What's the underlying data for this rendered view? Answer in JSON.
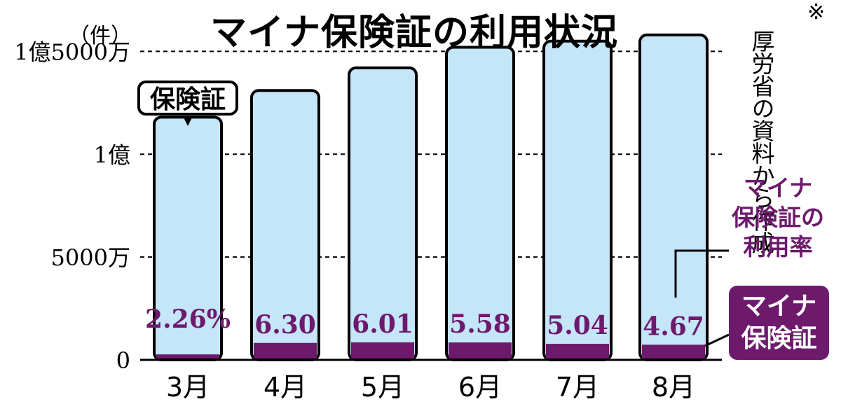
{
  "title": "マイナ保険証の利用状況",
  "unit_label": "（件）",
  "source_note": {
    "mark": "※",
    "text": "厚労省の資料から作成"
  },
  "legend": {
    "rate_label": [
      "マイナ",
      "保険証の",
      "利用率"
    ],
    "mina_label": [
      "マイナ",
      "保険証"
    ],
    "insurance_callout": "保険証"
  },
  "colors": {
    "insurance_bar": "#c5e5f9",
    "mina_bar": "#6d1a6d",
    "outline": "#000000",
    "rate_text": "#6d1a6d"
  },
  "chart_data": {
    "type": "bar",
    "categories": [
      "3月",
      "4月",
      "5月",
      "6月",
      "7月",
      "8月"
    ],
    "series": [
      {
        "name": "保険証",
        "values": [
          118000000,
          131000000,
          142000000,
          152000000,
          155000000,
          158000000
        ]
      },
      {
        "name": "マイナ保険証",
        "values": [
          2670000,
          8250000,
          8530000,
          8480000,
          7810000,
          7380000
        ]
      }
    ],
    "rate_labels": [
      "2.26%",
      "6.30",
      "6.01",
      "5.58",
      "5.04",
      "4.67"
    ],
    "y_ticks": [
      {
        "value": 0,
        "label": "0"
      },
      {
        "value": 50000000,
        "label": "5000万"
      },
      {
        "value": 100000000,
        "label": "1億"
      },
      {
        "value": 150000000,
        "label": "1億5000万"
      }
    ],
    "ylim": [
      0,
      160000000
    ],
    "grid": "dashed"
  }
}
